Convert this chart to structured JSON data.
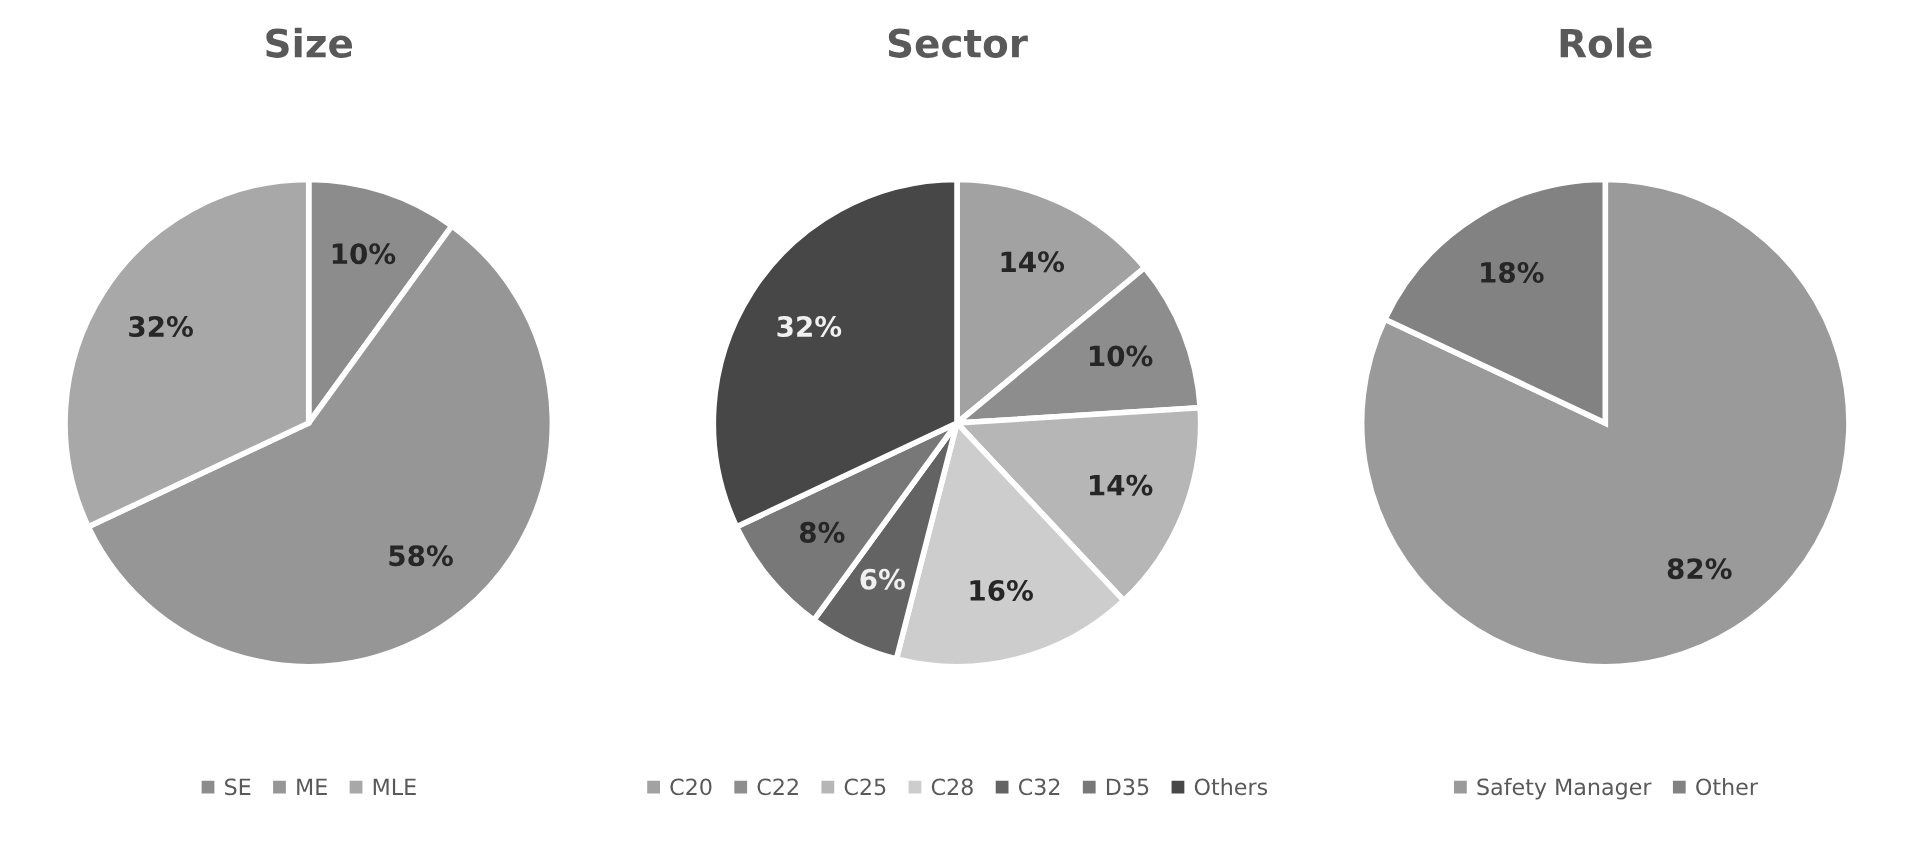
{
  "chart_data": [
    {
      "type": "pie",
      "title": "Size",
      "categories": [
        "SE",
        "ME",
        "MLE"
      ],
      "values": [
        10,
        58,
        32
      ],
      "value_labels": [
        "10%",
        "58%",
        "32%"
      ],
      "colors": [
        "#8c8c8c",
        "#969696",
        "#a8a8a8"
      ],
      "legend": "bottom"
    },
    {
      "type": "pie",
      "title": "Sector",
      "categories": [
        "C20",
        "C22",
        "C25",
        "C28",
        "C32",
        "D35",
        "Others"
      ],
      "values": [
        14,
        10,
        14,
        16,
        6,
        8,
        32
      ],
      "value_labels": [
        "14%",
        "10%",
        "14%",
        "16%",
        "6%",
        "8%",
        "32%"
      ],
      "colors": [
        "#a2a2a2",
        "#8d8d8d",
        "#b6b6b6",
        "#cdcdcd",
        "#636363",
        "#787878",
        "#474747"
      ],
      "legend": "bottom"
    },
    {
      "type": "pie",
      "title": "Role",
      "categories": [
        "Safety Manager",
        "Other"
      ],
      "values": [
        82,
        18
      ],
      "value_labels": [
        "82%",
        "18%"
      ],
      "colors": [
        "#9a9a9a",
        "#828282"
      ],
      "legend": "bottom"
    }
  ]
}
